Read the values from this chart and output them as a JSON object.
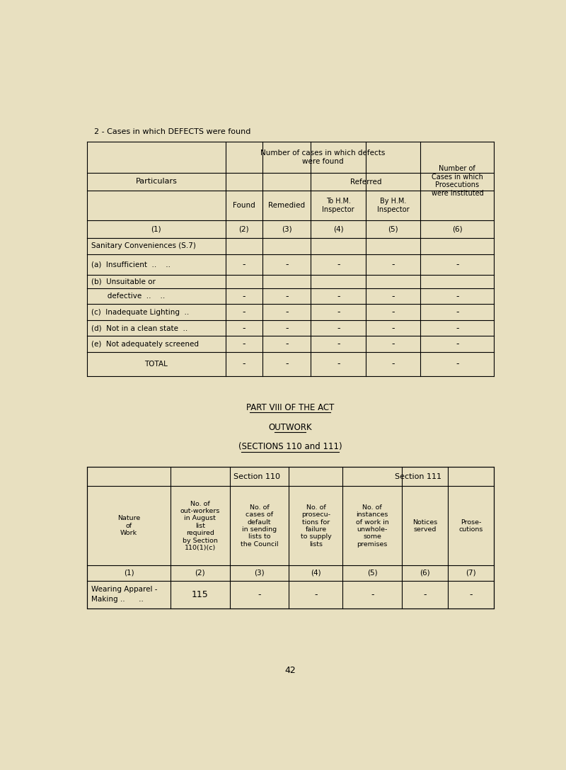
{
  "bg_color": "#e8e0c0",
  "page_title": "2 - Cases in which DEFECTS were found",
  "page_number": "42",
  "font_family": "Courier New",
  "table1": {
    "rows": [
      {
        "label": "Sanitary Conveniences (S.7)",
        "values": [
          "",
          "",
          "",
          "",
          ""
        ],
        "indent": 0
      },
      {
        "label": "(a)  Insufficient  ..    ..",
        "values": [
          "-",
          "-",
          "-",
          "-",
          "-"
        ],
        "indent": 0
      },
      {
        "label": "(b)  Unsuitable or",
        "values": [
          "",
          "",
          "",
          "",
          ""
        ],
        "indent": 0
      },
      {
        "label": "       defective  ..    ..",
        "values": [
          "-",
          "-",
          "-",
          "-",
          "-"
        ],
        "indent": 0
      },
      {
        "label": "(c)  Inadequate Lighting  ..",
        "values": [
          "-",
          "-",
          "-",
          "-",
          "-"
        ],
        "indent": 0
      },
      {
        "label": "(d)  Not in a clean state  ..",
        "values": [
          "-",
          "-",
          "-",
          "-",
          "-"
        ],
        "indent": 0
      },
      {
        "label": "(e)  Not adequately screened",
        "values": [
          "-",
          "-",
          "-",
          "-",
          "-"
        ],
        "indent": 0
      },
      {
        "label": "TOTAL",
        "values": [
          "-",
          "-",
          "-",
          "-",
          "-"
        ],
        "is_total": true
      }
    ]
  },
  "middle_titles": [
    "PART VIII OF THE ACT",
    "OUTWORK",
    "(SECTIONS 110 and 111)"
  ],
  "table2": {
    "rows": [
      {
        "label1": "Wearing Apparel -",
        "label2": "Making ..      ..",
        "col2": "115",
        "col3": "-",
        "col4": "-",
        "col5": "-",
        "col6": "-",
        "col7": "-"
      }
    ]
  }
}
